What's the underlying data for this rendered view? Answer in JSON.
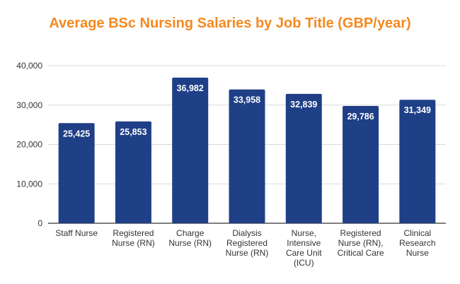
{
  "chart_data": {
    "type": "bar",
    "title": "Average BSc Nursing Salaries by Job Title (GBP/year)",
    "xlabel": "",
    "ylabel": "",
    "categories": [
      [
        "Staff Nurse"
      ],
      [
        "Registered",
        "Nurse (RN)"
      ],
      [
        "Charge",
        "Nurse (RN)"
      ],
      [
        "Dialysis",
        "Registered",
        "Nurse (RN)"
      ],
      [
        "Nurse,",
        "Intensive",
        "Care Unit",
        "(ICU)"
      ],
      [
        "Registered",
        "Nurse (RN),",
        "Critical Care"
      ],
      [
        "Clinical",
        "Research",
        "Nurse"
      ]
    ],
    "values": [
      25425,
      25853,
      36982,
      33958,
      32839,
      29786,
      31349
    ],
    "value_labels": [
      "25,425",
      "25,853",
      "36,982",
      "33,958",
      "32,839",
      "29,786",
      "31,349"
    ],
    "ylim": [
      0,
      40000
    ],
    "y_ticks": [
      0,
      10000,
      20000,
      30000,
      40000
    ],
    "y_tick_labels": [
      "0",
      "10,000",
      "20,000",
      "30,000",
      "40,000"
    ],
    "grid": true,
    "legend": "none",
    "colors": {
      "bar": "#1f3f87",
      "title": "#f5891f",
      "grid": "#d9d9d9",
      "axis": "#333333"
    }
  }
}
